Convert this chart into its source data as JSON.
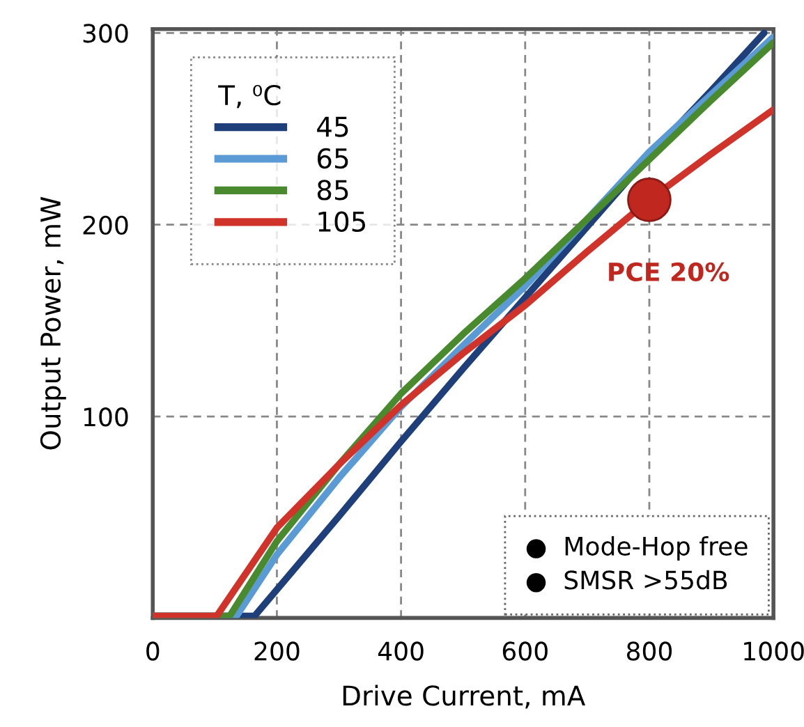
{
  "chart_data": {
    "type": "line",
    "xlabel": "Drive Current, mA",
    "ylabel": "Output Power, mW",
    "legend_title": "T, ⁰C",
    "xlim": [
      0,
      1000
    ],
    "ylim": [
      -5,
      302
    ],
    "xticks": [
      0,
      200,
      400,
      600,
      800,
      1000
    ],
    "yticks": [
      100,
      200,
      300
    ],
    "grid": true,
    "legend": "top left",
    "series": [
      {
        "name": "45",
        "color": "#1f3f7a",
        "x": [
          0,
          164,
          300,
          400,
          500,
          600,
          700,
          800,
          900,
          985
        ],
        "values": [
          -4,
          -4,
          48,
          87,
          125,
          162,
          199,
          236,
          270,
          300
        ]
      },
      {
        "name": "65",
        "color": "#5b9bd5",
        "x": [
          0,
          135,
          200,
          300,
          400,
          500,
          600,
          700,
          800,
          900,
          1000
        ],
        "values": [
          -4,
          -4,
          28,
          68,
          105,
          137,
          168,
          203,
          238,
          268,
          298
        ]
      },
      {
        "name": "85",
        "color": "#4a8a2e",
        "x": [
          0,
          124,
          200,
          300,
          400,
          500,
          600,
          700,
          800,
          900,
          1000
        ],
        "values": [
          -4,
          -4,
          35,
          75,
          112,
          143,
          172,
          203,
          234,
          265,
          295
        ]
      },
      {
        "name": "105",
        "color": "#d0332a",
        "x": [
          0,
          103,
          200,
          300,
          400,
          500,
          600,
          700,
          800,
          900,
          1000
        ],
        "values": [
          -4,
          -4,
          42,
          75,
          106,
          133,
          158,
          186,
          213,
          237,
          260
        ]
      },
      {
        "type": "scatter",
        "color": "#c0281f",
        "x": [
          800
        ],
        "values": [
          213
        ]
      }
    ],
    "annotations": [
      {
        "text": "PCE 20%",
        "x": 800,
        "y": 213
      },
      "●  Mode-Hop free\n●  SMSR >55dB"
    ]
  }
}
